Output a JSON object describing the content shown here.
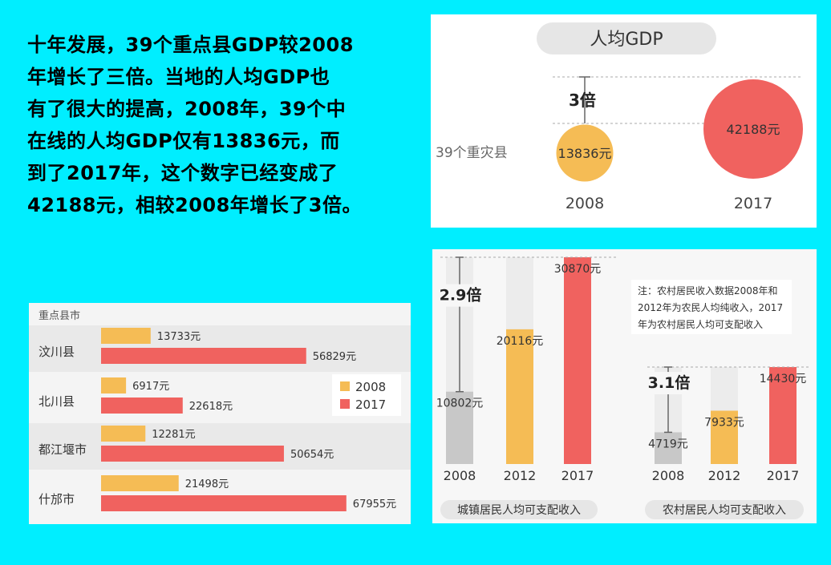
{
  "intro_text": [
    "十年发展，39个重点县GDP较2008",
    "年增长了三倍。当地的人均GDP也",
    "有了很大的提高，2008年，39个中",
    "在线的人均GDP仅有13836元，而",
    "到了2017年，这个数字已经变成了",
    "42188元，相较2008年增长了3倍。"
  ],
  "colors": {
    "y2008": "#f5bc55",
    "y2017": "#f0625f",
    "gray": "#c8c8c8",
    "bg": "#00eeff"
  },
  "chart_data": [
    {
      "type": "bubble",
      "title": "人均GDP",
      "row_label": "39个重灾县",
      "x": [
        "2008",
        "2017"
      ],
      "values": [
        13836,
        42188
      ],
      "value_labels": [
        "13836元",
        "42188元"
      ],
      "annotation": "3倍"
    },
    {
      "type": "bar",
      "orientation": "horizontal",
      "title": "重点县市",
      "categories": [
        "汶川县",
        "北川县",
        "都江堰市",
        "什邡市"
      ],
      "series": [
        {
          "name": "2008",
          "values": [
            13733,
            6917,
            12281,
            21498
          ],
          "labels": [
            "13733元",
            "6917元",
            "12281元",
            "21498元"
          ]
        },
        {
          "name": "2017",
          "values": [
            56829,
            22618,
            50654,
            67955
          ],
          "labels": [
            "56829元",
            "22618元",
            "50654元",
            "67955元"
          ]
        }
      ],
      "legend": [
        "2008",
        "2017"
      ]
    },
    {
      "type": "bar",
      "title": "城镇居民人均可支配收入",
      "categories": [
        "2008",
        "2012",
        "2017"
      ],
      "values": [
        10802,
        20116,
        30870
      ],
      "value_labels": [
        "10802元",
        "20116元",
        "30870元"
      ],
      "annotation": "2.9倍"
    },
    {
      "type": "bar",
      "title": "农村居民人均可支配收入",
      "categories": [
        "2008",
        "2012",
        "2017"
      ],
      "values": [
        4719,
        7933,
        14430
      ],
      "value_labels": [
        "4719元",
        "7933元",
        "14430元"
      ],
      "annotation": "3.1倍"
    }
  ],
  "note": [
    "注：农村居民收入数据2008年和",
    "2012年为农民人均纯收入，2017",
    "年为农村居民人均可支配收入"
  ]
}
